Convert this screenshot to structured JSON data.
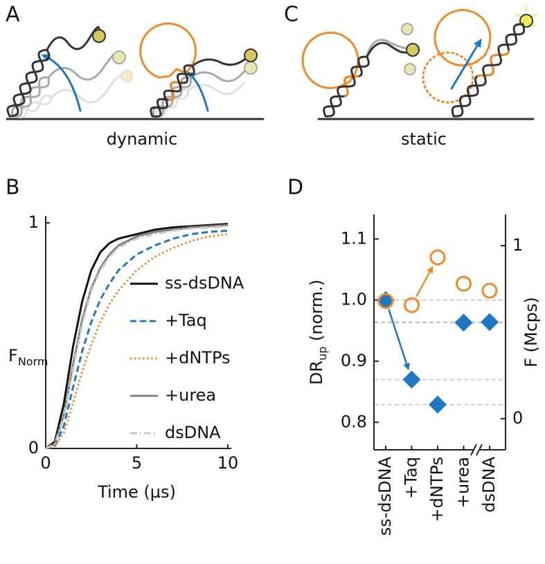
{
  "panel_labels": [
    "A",
    "B",
    "C",
    "D"
  ],
  "captions": [
    "dynamic",
    "static"
  ],
  "chart_data": [
    {
      "type": "line",
      "xlabel": "Time (µs)",
      "ylabel": "F",
      "ylabel_sub": "Norm",
      "x": [
        0,
        0.5,
        1,
        1.5,
        2,
        2.5,
        3,
        3.5,
        4,
        5,
        6,
        7,
        8,
        9,
        10
      ],
      "xlim": [
        0,
        10
      ],
      "xticks": [
        0,
        5,
        10
      ],
      "ylim": [
        0,
        1
      ],
      "yticks": [
        0,
        1
      ],
      "legend": "right",
      "series": [
        {
          "name": "ss-dsDNA",
          "color": "#111111",
          "style": "solid",
          "values": [
            0,
            0.03,
            0.2,
            0.45,
            0.65,
            0.79,
            0.87,
            0.91,
            0.93,
            0.95,
            0.97,
            0.98,
            0.985,
            0.99,
            0.995
          ]
        },
        {
          "name": "+Taq",
          "color": "#1f78c1",
          "style": "dashed",
          "values": [
            0,
            0.01,
            0.1,
            0.27,
            0.43,
            0.56,
            0.66,
            0.73,
            0.79,
            0.86,
            0.9,
            0.93,
            0.95,
            0.96,
            0.965
          ]
        },
        {
          "name": "+dNTPs",
          "color": "#f0892a",
          "style": "dotted",
          "values": [
            0,
            0.01,
            0.07,
            0.2,
            0.34,
            0.46,
            0.56,
            0.64,
            0.7,
            0.79,
            0.85,
            0.89,
            0.92,
            0.94,
            0.95
          ]
        },
        {
          "name": "+urea",
          "color": "#808080",
          "style": "solid",
          "values": [
            0,
            0.02,
            0.15,
            0.37,
            0.57,
            0.71,
            0.8,
            0.86,
            0.9,
            0.94,
            0.96,
            0.97,
            0.98,
            0.985,
            0.99
          ]
        },
        {
          "name": "dsDNA",
          "color": "#c8c8c8",
          "style": "dashdot",
          "values": [
            0,
            0.02,
            0.14,
            0.35,
            0.55,
            0.7,
            0.79,
            0.85,
            0.89,
            0.93,
            0.95,
            0.965,
            0.975,
            0.98,
            0.985
          ]
        }
      ]
    },
    {
      "type": "scatter",
      "ylabel": "DR",
      "ylabel_sub": "up",
      "ylabel_suffix": " (norm.)",
      "y2label": "F (Mcps)",
      "categories": [
        "ss-dsDNA",
        "+Taq",
        "+dNTPs",
        "+urea",
        "dsDNA"
      ],
      "ylim": [
        0.755,
        1.14
      ],
      "yticks": [
        0.8,
        0.9,
        {
          "value": 1.0,
          "label": "1.0"
        },
        1.1
      ],
      "y2lim": [
        -0.18,
        1.18
      ],
      "y2ticks": [
        0,
        1
      ],
      "guides": true,
      "series": [
        {
          "color": "#1f78c1",
          "marker": "diamond",
          "values": [
            1.0,
            0.87,
            0.829,
            0.963,
            0.964
          ]
        },
        {
          "color": "#f0892a",
          "marker": "circle",
          "axis": "y2",
          "values": [
            0.68,
            0.656,
            0.932,
            0.78,
            0.74
          ]
        }
      ]
    }
  ]
}
